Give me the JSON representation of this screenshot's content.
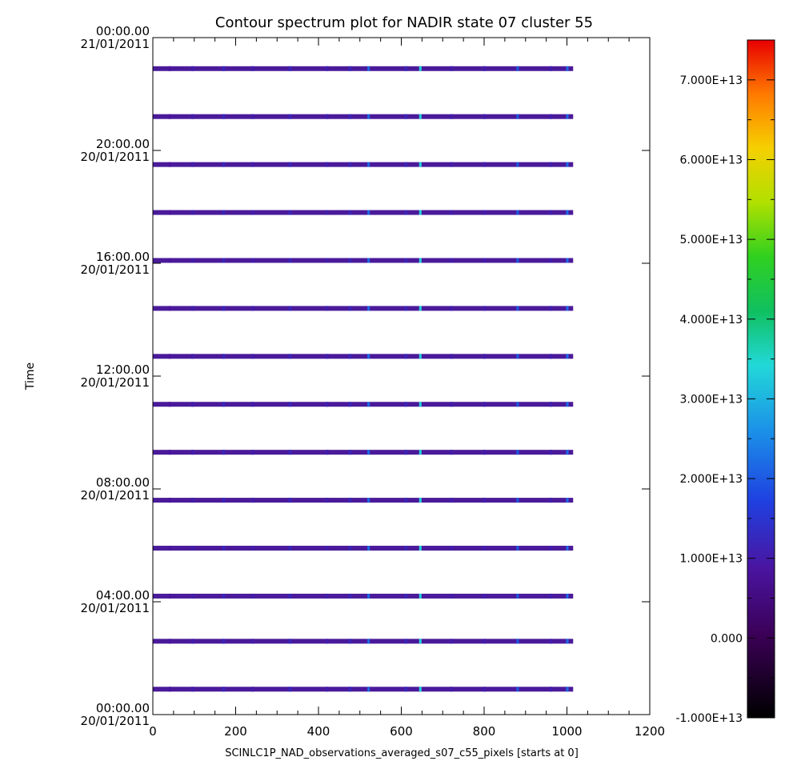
{
  "chart_data": {
    "type": "heatmap",
    "title": "Contour spectrum plot for NADIR state 07 cluster 55",
    "xlabel": "SCINLC1P_NAD_observations_averaged_s07_c55_pixels [starts at 0]",
    "ylabel": "Time",
    "xlim": [
      0,
      1200
    ],
    "x_ticks": [
      "0",
      "200",
      "400",
      "600",
      "800",
      "1000",
      "1200"
    ],
    "ylim_hours": [
      0,
      24
    ],
    "y_ticks": [
      {
        "hour": 0,
        "time": "00:00.00",
        "date": "20/01/2011"
      },
      {
        "hour": 4,
        "time": "04:00.00",
        "date": "20/01/2011"
      },
      {
        "hour": 8,
        "time": "08:00.00",
        "date": "20/01/2011"
      },
      {
        "hour": 12,
        "time": "12:00.00",
        "date": "20/01/2011"
      },
      {
        "hour": 16,
        "time": "16:00.00",
        "date": "20/01/2011"
      },
      {
        "hour": 20,
        "time": "20:00.00",
        "date": "20/01/2011"
      },
      {
        "hour": 24,
        "time": "00:00.00",
        "date": "21/01/2011"
      }
    ],
    "observation_hours": [
      0.9,
      2.6,
      4.2,
      5.9,
      7.6,
      9.3,
      11.0,
      12.7,
      14.4,
      16.1,
      17.8,
      19.5,
      21.2,
      22.9
    ],
    "observation_pixel_range": [
      0,
      1015
    ],
    "highlight_pixels": [
      {
        "pixel": 40,
        "level": 0.18
      },
      {
        "pixel": 95,
        "level": 0.2
      },
      {
        "pixel": 170,
        "level": 0.22
      },
      {
        "pixel": 240,
        "level": 0.2
      },
      {
        "pixel": 330,
        "level": 0.22
      },
      {
        "pixel": 420,
        "level": 0.2
      },
      {
        "pixel": 475,
        "level": 0.22
      },
      {
        "pixel": 520,
        "level": 0.32
      },
      {
        "pixel": 610,
        "level": 0.22
      },
      {
        "pixel": 645,
        "level": 0.45
      },
      {
        "pixel": 720,
        "level": 0.2
      },
      {
        "pixel": 800,
        "level": 0.2
      },
      {
        "pixel": 880,
        "level": 0.3
      },
      {
        "pixel": 960,
        "level": 0.2
      },
      {
        "pixel": 1000,
        "level": 0.32
      }
    ],
    "colorbar": {
      "min": -10000000000000.0,
      "max": 75000000000000.0,
      "ticks": [
        {
          "value": -10000000000000.0,
          "label": "-1.000E+13"
        },
        {
          "value": 0,
          "label": "0.000"
        },
        {
          "value": 10000000000000.0,
          "label": "1.000E+13"
        },
        {
          "value": 20000000000000.0,
          "label": "2.000E+13"
        },
        {
          "value": 30000000000000.0,
          "label": "3.000E+13"
        },
        {
          "value": 40000000000000.0,
          "label": "4.000E+13"
        },
        {
          "value": 50000000000000.0,
          "label": "5.000E+13"
        },
        {
          "value": 60000000000000.0,
          "label": "6.000E+13"
        },
        {
          "value": 70000000000000.0,
          "label": "7.000E+13"
        }
      ]
    },
    "legend": "colorbar-right",
    "grid": false
  }
}
